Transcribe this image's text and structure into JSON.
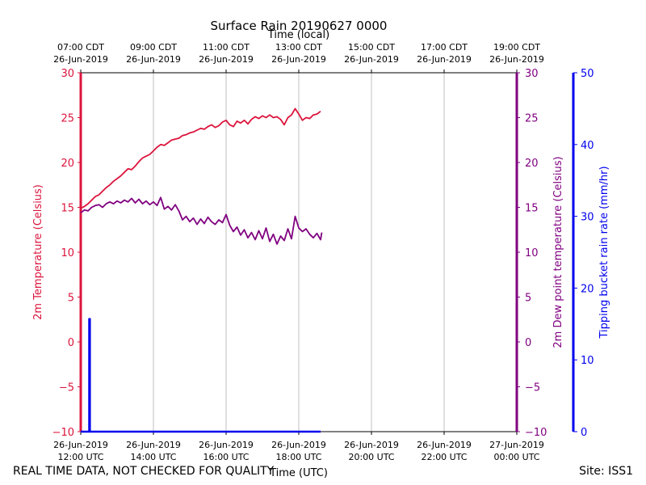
{
  "chart_data": {
    "type": "line",
    "title": "Surface Rain 20190627 0000",
    "top_axis_label": "Time (local)",
    "top_ticks": [
      {
        "x": "2019-06-26T12:00Z",
        "line1": "07:00 CDT",
        "line2": "26-Jun-2019"
      },
      {
        "x": "2019-06-26T14:00Z",
        "line1": "09:00 CDT",
        "line2": "26-Jun-2019"
      },
      {
        "x": "2019-06-26T16:00Z",
        "line1": "11:00 CDT",
        "line2": "26-Jun-2019"
      },
      {
        "x": "2019-06-26T18:00Z",
        "line1": "13:00 CDT",
        "line2": "26-Jun-2019"
      },
      {
        "x": "2019-06-26T20:00Z",
        "line1": "15:00 CDT",
        "line2": "26-Jun-2019"
      },
      {
        "x": "2019-06-26T22:00Z",
        "line1": "17:00 CDT",
        "line2": "26-Jun-2019"
      },
      {
        "x": "2019-06-27T00:00Z",
        "line1": "19:00 CDT",
        "line2": "26-Jun-2019"
      }
    ],
    "bottom_axis_label": "Time (UTC)",
    "bottom_ticks": [
      {
        "x": "2019-06-26T12:00Z",
        "line1": "26-Jun-2019",
        "line2": "12:00 UTC"
      },
      {
        "x": "2019-06-26T14:00Z",
        "line1": "26-Jun-2019",
        "line2": "14:00 UTC"
      },
      {
        "x": "2019-06-26T16:00Z",
        "line1": "26-Jun-2019",
        "line2": "16:00 UTC"
      },
      {
        "x": "2019-06-26T18:00Z",
        "line1": "26-Jun-2019",
        "line2": "18:00 UTC"
      },
      {
        "x": "2019-06-26T20:00Z",
        "line1": "26-Jun-2019",
        "line2": "20:00 UTC"
      },
      {
        "x": "2019-06-26T22:00Z",
        "line1": "26-Jun-2019",
        "line2": "22:00 UTC"
      },
      {
        "x": "2019-06-27T00:00Z",
        "line1": "27-Jun-2019",
        "line2": "00:00 UTC"
      }
    ],
    "xlim": [
      "2019-06-26T12:00Z",
      "2019-06-27T00:00Z"
    ],
    "grid": "vertical",
    "axes": {
      "left": {
        "label": "2m Temperature (Celsius)",
        "ylim": [
          -10,
          30
        ],
        "ticks": [
          -10,
          -5,
          0,
          5,
          10,
          15,
          20,
          25,
          30
        ],
        "color": "#dc143c"
      },
      "right1": {
        "label": "2m Dew point temperature (Celsius)",
        "ylim": [
          -10,
          30
        ],
        "ticks": [
          -10,
          -5,
          0,
          5,
          10,
          15,
          20,
          25,
          30
        ],
        "color": "#800080"
      },
      "right2": {
        "label": "Tipping bucket rain rate (mm/hr)",
        "ylim": [
          0,
          50
        ],
        "ticks": [
          0,
          10,
          20,
          30,
          40,
          50
        ],
        "color": "#0000ee"
      }
    },
    "series": [
      {
        "key": "temperature",
        "axis": "left",
        "color": "#dc143c",
        "points": [
          [
            "2019-06-26T12:00Z",
            14.9
          ],
          [
            "2019-06-26T12:06Z",
            15.1
          ],
          [
            "2019-06-26T12:12Z",
            15.4
          ],
          [
            "2019-06-26T12:18Z",
            15.8
          ],
          [
            "2019-06-26T12:24Z",
            16.2
          ],
          [
            "2019-06-26T12:30Z",
            16.4
          ],
          [
            "2019-06-26T12:36Z",
            16.8
          ],
          [
            "2019-06-26T12:42Z",
            17.2
          ],
          [
            "2019-06-26T12:48Z",
            17.5
          ],
          [
            "2019-06-26T12:54Z",
            17.9
          ],
          [
            "2019-06-26T13:00Z",
            18.2
          ],
          [
            "2019-06-26T13:06Z",
            18.5
          ],
          [
            "2019-06-26T13:12Z",
            18.9
          ],
          [
            "2019-06-26T13:18Z",
            19.3
          ],
          [
            "2019-06-26T13:24Z",
            19.2
          ],
          [
            "2019-06-26T13:30Z",
            19.6
          ],
          [
            "2019-06-26T13:36Z",
            20.1
          ],
          [
            "2019-06-26T13:42Z",
            20.5
          ],
          [
            "2019-06-26T13:48Z",
            20.7
          ],
          [
            "2019-06-26T13:54Z",
            20.9
          ],
          [
            "2019-06-26T14:00Z",
            21.3
          ],
          [
            "2019-06-26T14:06Z",
            21.7
          ],
          [
            "2019-06-26T14:12Z",
            22.0
          ],
          [
            "2019-06-26T14:18Z",
            21.9
          ],
          [
            "2019-06-26T14:24Z",
            22.2
          ],
          [
            "2019-06-26T14:30Z",
            22.5
          ],
          [
            "2019-06-26T14:36Z",
            22.6
          ],
          [
            "2019-06-26T14:42Z",
            22.7
          ],
          [
            "2019-06-26T14:48Z",
            23.0
          ],
          [
            "2019-06-26T14:54Z",
            23.1
          ],
          [
            "2019-06-26T15:00Z",
            23.3
          ],
          [
            "2019-06-26T15:06Z",
            23.4
          ],
          [
            "2019-06-26T15:12Z",
            23.6
          ],
          [
            "2019-06-26T15:18Z",
            23.8
          ],
          [
            "2019-06-26T15:24Z",
            23.7
          ],
          [
            "2019-06-26T15:30Z",
            24.0
          ],
          [
            "2019-06-26T15:36Z",
            24.2
          ],
          [
            "2019-06-26T15:42Z",
            23.9
          ],
          [
            "2019-06-26T15:48Z",
            24.1
          ],
          [
            "2019-06-26T15:54Z",
            24.5
          ],
          [
            "2019-06-26T16:00Z",
            24.7
          ],
          [
            "2019-06-26T16:06Z",
            24.2
          ],
          [
            "2019-06-26T16:12Z",
            24.0
          ],
          [
            "2019-06-26T16:18Z",
            24.6
          ],
          [
            "2019-06-26T16:24Z",
            24.4
          ],
          [
            "2019-06-26T16:30Z",
            24.7
          ],
          [
            "2019-06-26T16:36Z",
            24.3
          ],
          [
            "2019-06-26T16:42Z",
            24.8
          ],
          [
            "2019-06-26T16:48Z",
            25.1
          ],
          [
            "2019-06-26T16:54Z",
            24.9
          ],
          [
            "2019-06-26T17:00Z",
            25.2
          ],
          [
            "2019-06-26T17:06Z",
            25.0
          ],
          [
            "2019-06-26T17:12Z",
            25.3
          ],
          [
            "2019-06-26T17:18Z",
            25.0
          ],
          [
            "2019-06-26T17:24Z",
            25.1
          ],
          [
            "2019-06-26T17:30Z",
            24.8
          ],
          [
            "2019-06-26T17:36Z",
            24.2
          ],
          [
            "2019-06-26T17:42Z",
            25.0
          ],
          [
            "2019-06-26T17:48Z",
            25.3
          ],
          [
            "2019-06-26T17:54Z",
            26.0
          ],
          [
            "2019-06-26T18:00Z",
            25.4
          ],
          [
            "2019-06-26T18:06Z",
            24.7
          ],
          [
            "2019-06-26T18:12Z",
            25.0
          ],
          [
            "2019-06-26T18:18Z",
            24.9
          ],
          [
            "2019-06-26T18:24Z",
            25.3
          ],
          [
            "2019-06-26T18:30Z",
            25.4
          ],
          [
            "2019-06-26T18:36Z",
            25.7
          ]
        ]
      },
      {
        "key": "dewpoint",
        "axis": "right1",
        "color": "#800080",
        "points": [
          [
            "2019-06-26T12:00Z",
            14.4
          ],
          [
            "2019-06-26T12:06Z",
            14.7
          ],
          [
            "2019-06-26T12:12Z",
            14.6
          ],
          [
            "2019-06-26T12:18Z",
            15.0
          ],
          [
            "2019-06-26T12:24Z",
            15.2
          ],
          [
            "2019-06-26T12:30Z",
            15.3
          ],
          [
            "2019-06-26T12:36Z",
            15.0
          ],
          [
            "2019-06-26T12:42Z",
            15.4
          ],
          [
            "2019-06-26T12:48Z",
            15.6
          ],
          [
            "2019-06-26T12:54Z",
            15.4
          ],
          [
            "2019-06-26T13:00Z",
            15.7
          ],
          [
            "2019-06-26T13:06Z",
            15.5
          ],
          [
            "2019-06-26T13:12Z",
            15.8
          ],
          [
            "2019-06-26T13:18Z",
            15.6
          ],
          [
            "2019-06-26T13:24Z",
            16.0
          ],
          [
            "2019-06-26T13:30Z",
            15.5
          ],
          [
            "2019-06-26T13:36Z",
            15.9
          ],
          [
            "2019-06-26T13:42Z",
            15.4
          ],
          [
            "2019-06-26T13:48Z",
            15.7
          ],
          [
            "2019-06-26T13:54Z",
            15.3
          ],
          [
            "2019-06-26T14:00Z",
            15.6
          ],
          [
            "2019-06-26T14:06Z",
            15.2
          ],
          [
            "2019-06-26T14:12Z",
            16.1
          ],
          [
            "2019-06-26T14:18Z",
            14.8
          ],
          [
            "2019-06-26T14:24Z",
            15.1
          ],
          [
            "2019-06-26T14:30Z",
            14.7
          ],
          [
            "2019-06-26T14:36Z",
            15.3
          ],
          [
            "2019-06-26T14:42Z",
            14.6
          ],
          [
            "2019-06-26T14:48Z",
            13.6
          ],
          [
            "2019-06-26T14:54Z",
            14.0
          ],
          [
            "2019-06-26T15:00Z",
            13.4
          ],
          [
            "2019-06-26T15:06Z",
            13.8
          ],
          [
            "2019-06-26T15:12Z",
            13.1
          ],
          [
            "2019-06-26T15:18Z",
            13.7
          ],
          [
            "2019-06-26T15:24Z",
            13.2
          ],
          [
            "2019-06-26T15:30Z",
            13.9
          ],
          [
            "2019-06-26T15:36Z",
            13.4
          ],
          [
            "2019-06-26T15:42Z",
            13.1
          ],
          [
            "2019-06-26T15:48Z",
            13.6
          ],
          [
            "2019-06-26T15:54Z",
            13.3
          ],
          [
            "2019-06-26T16:00Z",
            14.2
          ],
          [
            "2019-06-26T16:06Z",
            13.0
          ],
          [
            "2019-06-26T16:12Z",
            12.3
          ],
          [
            "2019-06-26T16:18Z",
            12.8
          ],
          [
            "2019-06-26T16:24Z",
            11.9
          ],
          [
            "2019-06-26T16:30Z",
            12.5
          ],
          [
            "2019-06-26T16:36Z",
            11.6
          ],
          [
            "2019-06-26T16:42Z",
            12.2
          ],
          [
            "2019-06-26T16:48Z",
            11.4
          ],
          [
            "2019-06-26T16:54Z",
            12.4
          ],
          [
            "2019-06-26T17:00Z",
            11.5
          ],
          [
            "2019-06-26T17:06Z",
            12.7
          ],
          [
            "2019-06-26T17:12Z",
            11.2
          ],
          [
            "2019-06-26T17:18Z",
            12.0
          ],
          [
            "2019-06-26T17:24Z",
            10.9
          ],
          [
            "2019-06-26T17:30Z",
            11.8
          ],
          [
            "2019-06-26T17:36Z",
            11.3
          ],
          [
            "2019-06-26T17:42Z",
            12.6
          ],
          [
            "2019-06-26T17:48Z",
            11.5
          ],
          [
            "2019-06-26T17:54Z",
            14.0
          ],
          [
            "2019-06-26T18:00Z",
            12.7
          ],
          [
            "2019-06-26T18:06Z",
            12.3
          ],
          [
            "2019-06-26T18:12Z",
            12.6
          ],
          [
            "2019-06-26T18:18Z",
            12.0
          ],
          [
            "2019-06-26T18:24Z",
            11.6
          ],
          [
            "2019-06-26T18:30Z",
            12.1
          ],
          [
            "2019-06-26T18:36Z",
            11.4
          ],
          [
            "2019-06-26T18:38Z",
            12.2
          ]
        ]
      },
      {
        "key": "rain_rate",
        "axis": "right2",
        "color": "#0000ee",
        "points": [
          [
            "2019-06-26T12:00Z",
            0
          ],
          [
            "2019-06-26T12:14Z",
            0
          ],
          [
            "2019-06-26T12:14Z",
            15.7
          ],
          [
            "2019-06-26T12:15Z",
            15.7
          ],
          [
            "2019-06-26T12:15Z",
            0
          ],
          [
            "2019-06-26T18:36Z",
            0
          ]
        ]
      }
    ]
  },
  "footer": {
    "left_note": "REAL TIME DATA, NOT CHECKED FOR QUALITY",
    "site": "Site: ISS1"
  }
}
